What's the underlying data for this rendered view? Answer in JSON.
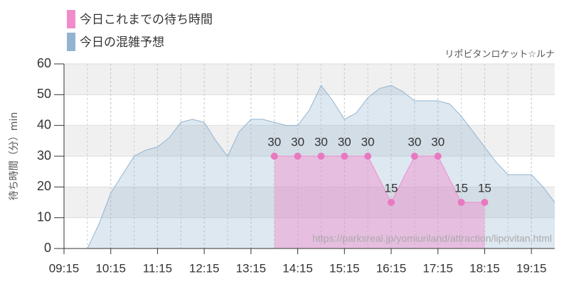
{
  "chart_data": {
    "type": "area",
    "y_label": "待ち時間（分）min",
    "credit": "リポビタンロケット☆ルナ",
    "watermark": "https://parksreal.jp/yomiuriland/attraction/lipovitan.html",
    "xlim": [
      "09:15",
      "19:45"
    ],
    "xticks": [
      "09:15",
      "10:15",
      "11:15",
      "12:15",
      "13:15",
      "14:15",
      "15:15",
      "16:15",
      "17:15",
      "18:15",
      "19:15"
    ],
    "ylim": [
      0,
      60
    ],
    "yticks": [
      0,
      10,
      20,
      30,
      40,
      50,
      60
    ],
    "grid": true,
    "series": [
      {
        "name": "今日これまでの待ち時間",
        "color": "#f08ccc",
        "x": [
          "13:45",
          "14:15",
          "14:45",
          "15:15",
          "15:45",
          "16:15",
          "16:45",
          "17:15",
          "17:45",
          "18:15"
        ],
        "values": [
          30,
          30,
          30,
          30,
          30,
          15,
          30,
          30,
          15,
          15
        ]
      },
      {
        "name": "今日の混雑予想",
        "color": "#93b4d0",
        "x": [
          "09:15",
          "09:30",
          "09:45",
          "10:00",
          "10:15",
          "10:30",
          "10:45",
          "11:00",
          "11:15",
          "11:30",
          "11:45",
          "12:00",
          "12:15",
          "12:30",
          "12:45",
          "13:00",
          "13:15",
          "13:30",
          "13:45",
          "14:00",
          "14:15",
          "14:30",
          "14:45",
          "15:00",
          "15:15",
          "15:30",
          "15:45",
          "16:00",
          "16:15",
          "16:30",
          "16:45",
          "17:00",
          "17:15",
          "17:30",
          "17:45",
          "18:00",
          "18:15",
          "18:30",
          "18:45",
          "19:00",
          "19:15",
          "19:30",
          "19:45"
        ],
        "values": [
          0,
          0,
          0,
          8,
          18,
          24,
          30,
          32,
          33,
          36,
          41,
          42,
          41,
          35,
          30,
          38,
          42,
          42,
          41,
          40,
          40,
          45,
          53,
          48,
          42,
          44,
          49,
          52,
          53,
          51,
          48,
          48,
          48,
          47,
          43,
          38,
          33,
          28,
          24,
          24,
          24,
          20,
          15
        ]
      }
    ]
  }
}
